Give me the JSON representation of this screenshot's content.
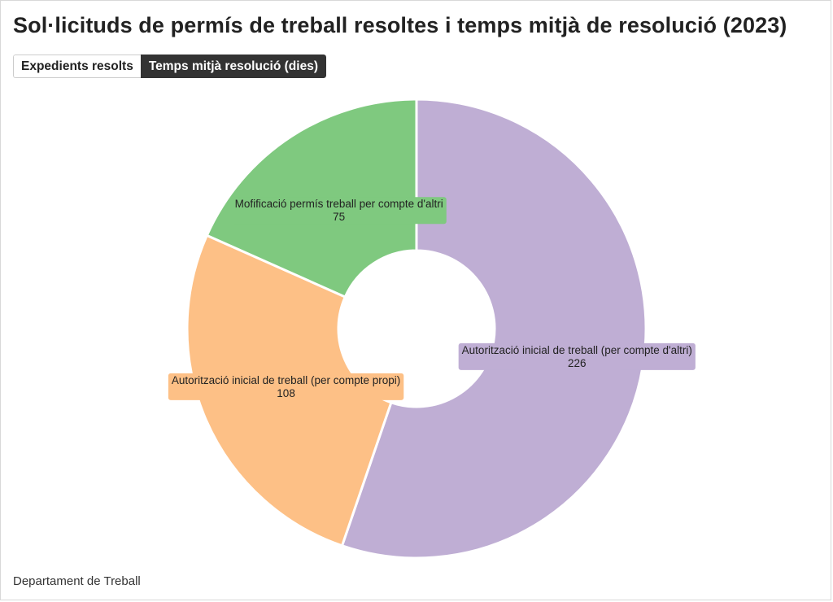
{
  "title": "Sol·licituds de permís de treball resoltes i temps mitjà de resolució (2023)",
  "tabs": [
    {
      "label": "Expedients resolts",
      "active": false
    },
    {
      "label": "Temps mitjà resolució (dies)",
      "active": true
    }
  ],
  "source": "Departament de Treball",
  "chart_data": {
    "type": "pie",
    "variant": "donut",
    "start_angle_deg": 0,
    "direction": "clockwise",
    "slices": [
      {
        "label": "Autorització inicial de treball (per compte d'altri)",
        "value": 226,
        "color": "#bfaed4"
      },
      {
        "label": "Autorització inicial de treball (per compte propi)",
        "value": 108,
        "color": "#fdc086"
      },
      {
        "label": "Mofificació permís treball per compte d'altri",
        "value": 75,
        "color": "#7fc97f"
      }
    ]
  }
}
